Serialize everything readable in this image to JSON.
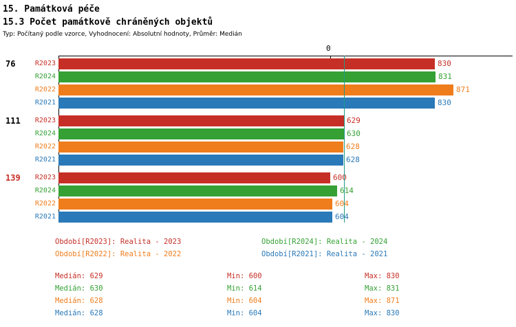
{
  "header": {
    "title": "15. Památková péče",
    "subtitle": "15.3 Počet památkově chráněných objektů",
    "meta": "Typ: Počítaný podle vzorce, Vyhodnocení: Absolutní hodnoty, Průměr: Medián"
  },
  "chart_data": {
    "type": "bar",
    "orientation": "horizontal",
    "title": "15.3 Počet památkově chráněných objektů",
    "x_axis_tick_label": "0",
    "xlim": [
      0,
      880
    ],
    "median_line_value": 629,
    "median_line_color": "#1c9b88",
    "series": [
      "R2023",
      "R2024",
      "R2022",
      "R2021"
    ],
    "series_colors": {
      "R2023": "#c62f26",
      "R2024": "#35a135",
      "R2022": "#ef7d1c",
      "R2021": "#2a79b8"
    },
    "groups": [
      {
        "label": "76",
        "label_color": "#000000",
        "values": [
          830,
          831,
          871,
          830
        ]
      },
      {
        "label": "111",
        "label_color": "#000000",
        "values": [
          629,
          630,
          628,
          628
        ]
      },
      {
        "label": "139",
        "label_color": "#c62f26",
        "values": [
          600,
          614,
          604,
          604
        ]
      }
    ]
  },
  "legend": {
    "items": [
      {
        "series": "R2023",
        "text": "Období[R2023]: Realita - 2023"
      },
      {
        "series": "R2024",
        "text": "Období[R2024]: Realita - 2024"
      },
      {
        "series": "R2022",
        "text": "Období[R2022]: Realita - 2022"
      },
      {
        "series": "R2021",
        "text": "Období[R2021]: Realita - 2021"
      }
    ]
  },
  "stats_labels": {
    "median": "Medián",
    "min": "Min",
    "max": "Max"
  },
  "stats": [
    {
      "series": "R2023",
      "median": 629,
      "min": 600,
      "max": 830
    },
    {
      "series": "R2024",
      "median": 630,
      "min": 614,
      "max": 831
    },
    {
      "series": "R2022",
      "median": 628,
      "min": 604,
      "max": 871
    },
    {
      "series": "R2021",
      "median": 628,
      "min": 604,
      "max": 830
    }
  ]
}
